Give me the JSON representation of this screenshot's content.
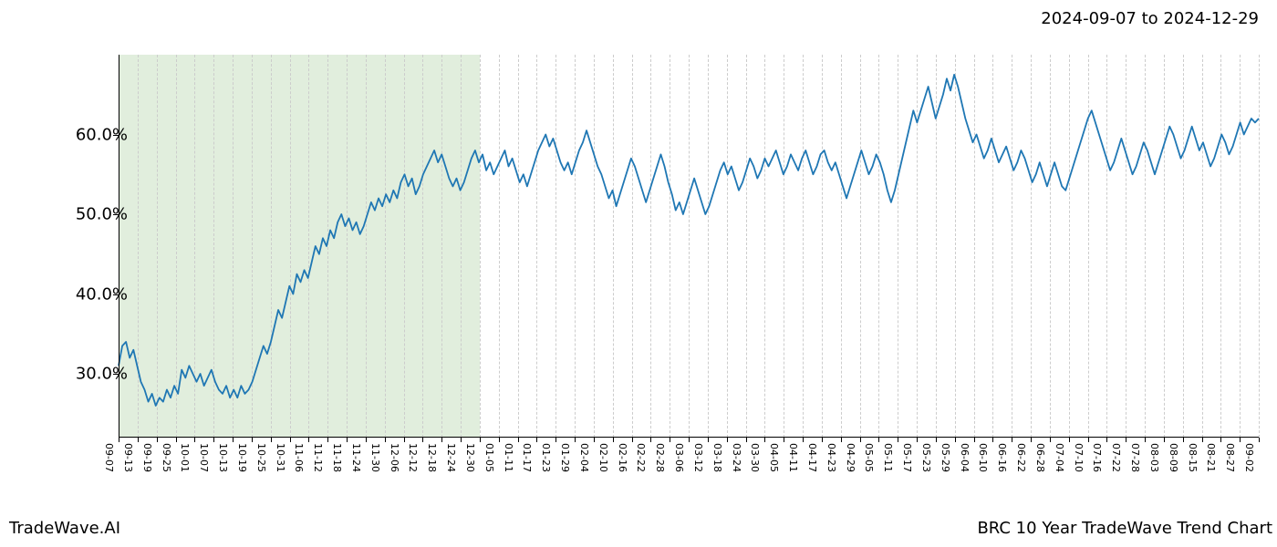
{
  "date_range_text": "2024-09-07 to 2024-12-29",
  "brand": "TradeWave.AI",
  "chart_title": "BRC 10 Year TradeWave Trend Chart",
  "chart": {
    "type": "line",
    "line_color": "#1f77b4",
    "line_width": 1.8,
    "background_color": "#ffffff",
    "grid_color": "#cccccc",
    "grid_dash": "3,3",
    "highlight": {
      "fill": "#c9e0c1",
      "opacity": 0.55,
      "x_start": "09-07",
      "x_end": "12-30"
    },
    "ylim": [
      22,
      70
    ],
    "ytick_values": [
      30,
      40,
      50,
      60
    ],
    "ytick_labels": [
      "30.0%",
      "40.0%",
      "50.0%",
      "60.0%"
    ],
    "ytick_fontsize": 18,
    "xtick_fontsize": 11,
    "xticks": [
      "09-07",
      "09-13",
      "09-19",
      "09-25",
      "10-01",
      "10-07",
      "10-13",
      "10-19",
      "10-25",
      "10-31",
      "11-06",
      "11-12",
      "11-18",
      "11-24",
      "11-30",
      "12-06",
      "12-12",
      "12-18",
      "12-24",
      "12-30",
      "01-05",
      "01-11",
      "01-17",
      "01-23",
      "01-29",
      "02-04",
      "02-10",
      "02-16",
      "02-22",
      "02-28",
      "03-06",
      "03-12",
      "03-18",
      "03-24",
      "03-30",
      "04-05",
      "04-11",
      "04-17",
      "04-23",
      "04-29",
      "05-05",
      "05-11",
      "05-17",
      "05-23",
      "05-29",
      "06-04",
      "06-10",
      "06-16",
      "06-22",
      "06-28",
      "07-04",
      "07-10",
      "07-16",
      "07-22",
      "07-28",
      "08-03",
      "08-09",
      "08-15",
      "08-21",
      "08-27",
      "09-02"
    ],
    "series": [
      31.0,
      33.5,
      34.0,
      32.0,
      33.0,
      31.0,
      29.0,
      28.0,
      26.5,
      27.5,
      26.0,
      27.0,
      26.5,
      28.0,
      27.0,
      28.5,
      27.5,
      30.5,
      29.5,
      31.0,
      30.0,
      29.0,
      30.0,
      28.5,
      29.5,
      30.5,
      29.0,
      28.0,
      27.5,
      28.5,
      27.0,
      28.0,
      27.0,
      28.5,
      27.5,
      28.0,
      29.0,
      30.5,
      32.0,
      33.5,
      32.5,
      34.0,
      36.0,
      38.0,
      37.0,
      39.0,
      41.0,
      40.0,
      42.5,
      41.5,
      43.0,
      42.0,
      44.0,
      46.0,
      45.0,
      47.0,
      46.0,
      48.0,
      47.0,
      49.0,
      50.0,
      48.5,
      49.5,
      48.0,
      49.0,
      47.5,
      48.5,
      50.0,
      51.5,
      50.5,
      52.0,
      51.0,
      52.5,
      51.5,
      53.0,
      52.0,
      54.0,
      55.0,
      53.5,
      54.5,
      52.5,
      53.5,
      55.0,
      56.0,
      57.0,
      58.0,
      56.5,
      57.5,
      56.0,
      54.5,
      53.5,
      54.5,
      53.0,
      54.0,
      55.5,
      57.0,
      58.0,
      56.5,
      57.5,
      55.5,
      56.5,
      55.0,
      56.0,
      57.0,
      58.0,
      56.0,
      57.0,
      55.5,
      54.0,
      55.0,
      53.5,
      55.0,
      56.5,
      58.0,
      59.0,
      60.0,
      58.5,
      59.5,
      58.0,
      56.5,
      55.5,
      56.5,
      55.0,
      56.5,
      58.0,
      59.0,
      60.5,
      59.0,
      57.5,
      56.0,
      55.0,
      53.5,
      52.0,
      53.0,
      51.0,
      52.5,
      54.0,
      55.5,
      57.0,
      56.0,
      54.5,
      53.0,
      51.5,
      53.0,
      54.5,
      56.0,
      57.5,
      56.0,
      54.0,
      52.5,
      50.5,
      51.5,
      50.0,
      51.5,
      53.0,
      54.5,
      53.0,
      51.5,
      50.0,
      51.0,
      52.5,
      54.0,
      55.5,
      56.5,
      55.0,
      56.0,
      54.5,
      53.0,
      54.0,
      55.5,
      57.0,
      56.0,
      54.5,
      55.5,
      57.0,
      56.0,
      57.0,
      58.0,
      56.5,
      55.0,
      56.0,
      57.5,
      56.5,
      55.5,
      57.0,
      58.0,
      56.5,
      55.0,
      56.0,
      57.5,
      58.0,
      56.5,
      55.5,
      56.5,
      55.0,
      53.5,
      52.0,
      53.5,
      55.0,
      56.5,
      58.0,
      56.5,
      55.0,
      56.0,
      57.5,
      56.5,
      55.0,
      53.0,
      51.5,
      53.0,
      55.0,
      57.0,
      59.0,
      61.0,
      63.0,
      61.5,
      63.0,
      64.5,
      66.0,
      64.0,
      62.0,
      63.5,
      65.0,
      67.0,
      65.5,
      67.5,
      66.0,
      64.0,
      62.0,
      60.5,
      59.0,
      60.0,
      58.5,
      57.0,
      58.0,
      59.5,
      58.0,
      56.5,
      57.5,
      58.5,
      57.0,
      55.5,
      56.5,
      58.0,
      57.0,
      55.5,
      54.0,
      55.0,
      56.5,
      55.0,
      53.5,
      55.0,
      56.5,
      55.0,
      53.5,
      53.0,
      54.5,
      56.0,
      57.5,
      59.0,
      60.5,
      62.0,
      63.0,
      61.5,
      60.0,
      58.5,
      57.0,
      55.5,
      56.5,
      58.0,
      59.5,
      58.0,
      56.5,
      55.0,
      56.0,
      57.5,
      59.0,
      58.0,
      56.5,
      55.0,
      56.5,
      58.0,
      59.5,
      61.0,
      60.0,
      58.5,
      57.0,
      58.0,
      59.5,
      61.0,
      59.5,
      58.0,
      59.0,
      57.5,
      56.0,
      57.0,
      58.5,
      60.0,
      59.0,
      57.5,
      58.5,
      60.0,
      61.5,
      60.0,
      61.0,
      62.0,
      61.5,
      62.0
    ]
  }
}
